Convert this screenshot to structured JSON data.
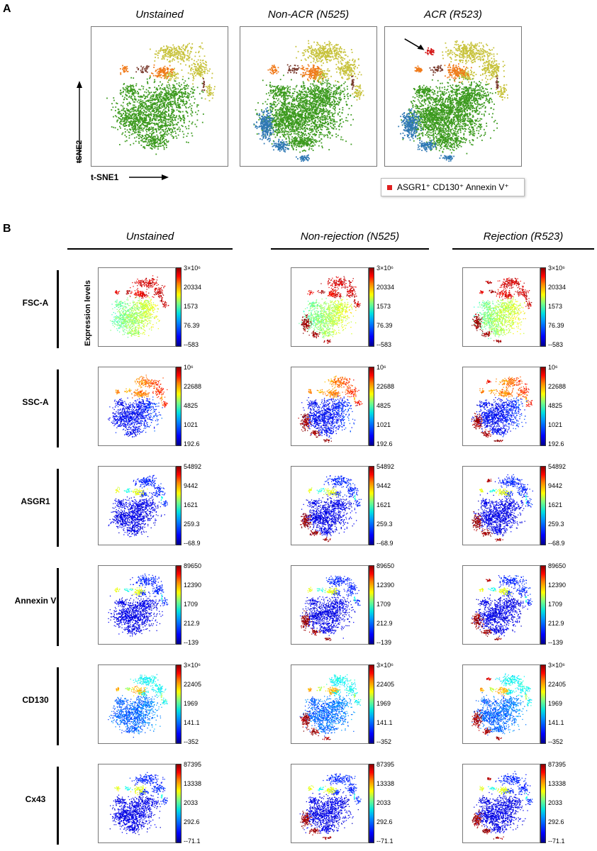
{
  "panel_a": {
    "letter": "A",
    "plots": [
      {
        "title": "Unstained",
        "variant": "unstained"
      },
      {
        "title": "Non-ACR (N525)",
        "variant": "nonacr"
      },
      {
        "title": "ACR (R523)",
        "variant": "acr"
      }
    ],
    "xaxis_label": "t-SNE1",
    "yaxis_label": "tSNE2",
    "legend_text": "ASGR1⁺ CD130⁺ Annexin V⁺",
    "legend_color": "#e02020",
    "cluster_colors": {
      "green": "#3c9a1e",
      "olive": "#c7c23a",
      "orange": "#f07a1a",
      "blue": "#2f78b4",
      "brown": "#7a3b2e",
      "red": "#d61e1e"
    }
  },
  "panel_b": {
    "letter": "B",
    "columns": [
      {
        "title": "Unstained",
        "variant": "unstained"
      },
      {
        "title": "Non-rejection (N525)",
        "variant": "nonacr"
      },
      {
        "title": "Rejection (R523)",
        "variant": "acr"
      }
    ],
    "expression_label": "Expression levels",
    "rows": [
      {
        "label": "FSC-A",
        "ticks": [
          "3×10⁶",
          "20334",
          "1573",
          "76.39",
          "-583"
        ],
        "mode": "fsc"
      },
      {
        "label": "SSC-A",
        "ticks": [
          "10⁶",
          "22688",
          "4825",
          "1021",
          "192.6"
        ],
        "mode": "ssc"
      },
      {
        "label": "ASGR1",
        "ticks": [
          "54892",
          "9442",
          "1621",
          "259.3",
          "-68.9"
        ],
        "mode": "low"
      },
      {
        "label": "Annexin V",
        "ticks": [
          "89650",
          "12390",
          "1709",
          "212.9",
          "-139"
        ],
        "mode": "low"
      },
      {
        "label": "CD130",
        "ticks": [
          "3×10⁶",
          "22405",
          "1969",
          "141.1",
          "-352"
        ],
        "mode": "mid"
      },
      {
        "label": "Cx43",
        "ticks": [
          "87395",
          "13338",
          "2033",
          "292.6",
          "-71.1"
        ],
        "mode": "low"
      }
    ]
  }
}
